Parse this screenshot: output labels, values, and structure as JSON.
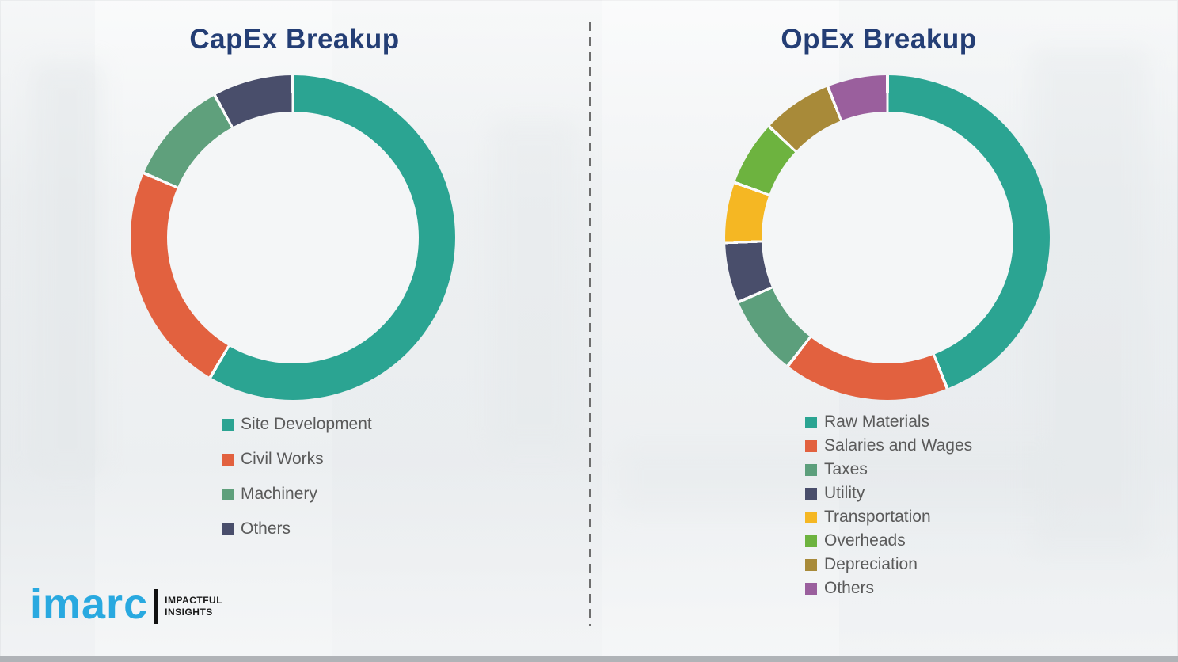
{
  "page": {
    "background_color": "#f2f4f5",
    "title_color": "#243e75",
    "legend_text_color": "#5a5a5a"
  },
  "divider": {
    "style": "vertical-dashed",
    "color": "#6e6e6e"
  },
  "logo": {
    "brand": "imarc",
    "brand_color": "#29a9e0",
    "tagline_line1": "IMPACTFUL",
    "tagline_line2": "INSIGHTS"
  },
  "chart_data": [
    {
      "type": "donut",
      "title": "CapEx Breakup",
      "legend_position": "below-chart-left",
      "start_angle_deg": 0,
      "clockwise": true,
      "series": [
        {
          "name": "Site Development",
          "value": 58.5,
          "color": "#2ba492"
        },
        {
          "name": "Civil Works",
          "value": 23.0,
          "color": "#e2613f"
        },
        {
          "name": "Machinery",
          "value": 10.5,
          "color": "#5fa07c"
        },
        {
          "name": "Others",
          "value": 8.0,
          "color": "#494e6b"
        }
      ]
    },
    {
      "type": "donut",
      "title": "OpEx Breakup",
      "legend_position": "below-chart-left",
      "start_angle_deg": 0,
      "clockwise": true,
      "series": [
        {
          "name": "Raw Materials",
          "value": 44.0,
          "color": "#2ba492"
        },
        {
          "name": "Salaries and Wages",
          "value": 16.5,
          "color": "#e2613f"
        },
        {
          "name": "Taxes",
          "value": 8.0,
          "color": "#5c9f7c"
        },
        {
          "name": "Utility",
          "value": 6.0,
          "color": "#494e6b"
        },
        {
          "name": "Transportation",
          "value": 6.0,
          "color": "#f5b723"
        },
        {
          "name": "Overheads",
          "value": 6.5,
          "color": "#6db33f"
        },
        {
          "name": "Depreciation",
          "value": 7.0,
          "color": "#a88a39"
        },
        {
          "name": "Others",
          "value": 6.0,
          "color": "#9a5f9d"
        }
      ]
    }
  ]
}
